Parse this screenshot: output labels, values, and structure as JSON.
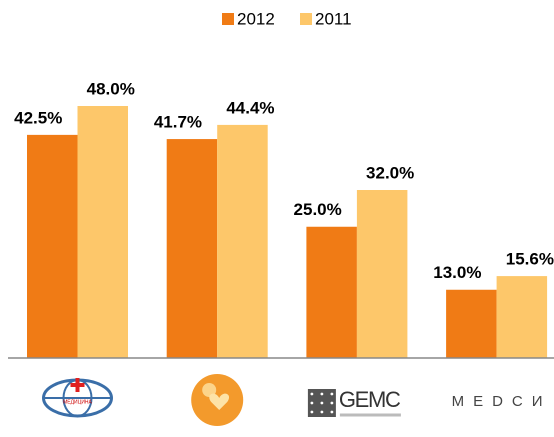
{
  "chart_data": {
    "type": "bar",
    "categories": [
      "МЕДИЦИНА",
      null,
      "GEMC",
      "MEDCИ"
    ],
    "series": [
      {
        "name": "2012",
        "color": "#f07b15",
        "values": [
          42.5,
          41.7,
          25.0,
          13.0
        ],
        "value_labels": [
          "42.5%",
          "41.7%",
          "25.0%",
          "13.0%"
        ]
      },
      {
        "name": "2011",
        "color": "#fdc76a",
        "values": [
          48.0,
          44.4,
          32.0,
          15.6
        ],
        "value_labels": [
          "48.0%",
          "44.4%",
          "32.0%",
          "15.6%"
        ]
      }
    ],
    "legend": "top"
  }
}
